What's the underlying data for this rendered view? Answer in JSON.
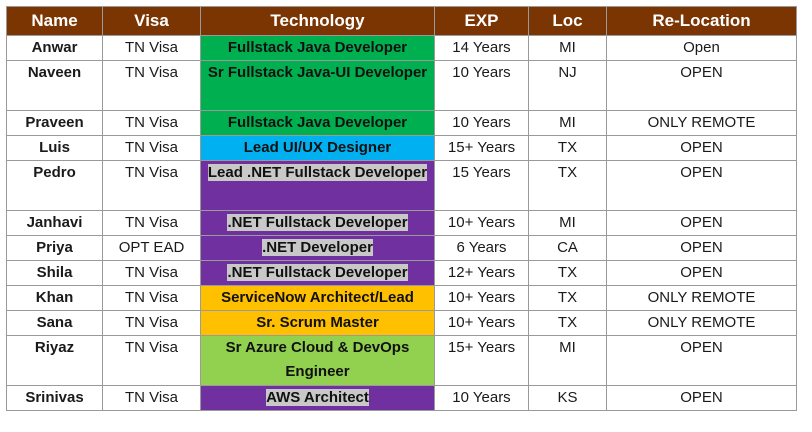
{
  "headers": [
    "Name",
    "Visa",
    "Technology",
    "EXP",
    "Loc",
    "Re-Location"
  ],
  "colors": {
    "header_bg": "#7a3503",
    "green": "#00b050",
    "blue": "#00b0f0",
    "purple": "#7030a0",
    "orange": "#ffc000",
    "lightgreen": "#92d050"
  },
  "rows": [
    {
      "name": "Anwar",
      "visa": "TN Visa",
      "tech": "Fullstack Java Developer",
      "tech_color": "green",
      "exp": "14 Years",
      "loc": "MI",
      "reloc": "Open"
    },
    {
      "name": "Naveen",
      "visa": "TN Visa",
      "tech": "Sr Fullstack Java-UI Developer",
      "tech_color": "green",
      "exp": "10 Years",
      "loc": "NJ",
      "reloc": "OPEN"
    },
    {
      "name": "Praveen",
      "visa": "TN Visa",
      "tech": "Fullstack Java Developer",
      "tech_color": "green",
      "exp": "10 Years",
      "loc": "MI",
      "reloc": "ONLY REMOTE"
    },
    {
      "name": "Luis",
      "visa": "TN Visa",
      "tech": "Lead UI/UX Designer",
      "tech_color": "blue",
      "exp": "15+ Years",
      "loc": "TX",
      "reloc": "OPEN"
    },
    {
      "name": "Pedro",
      "visa": "TN Visa",
      "tech": "Lead .NET Fullstack Developer",
      "tech_color": "purple",
      "exp": "15 Years",
      "loc": "TX",
      "reloc": "OPEN"
    },
    {
      "name": "Janhavi",
      "visa": "TN Visa",
      "tech": ".NET Fullstack Developer",
      "tech_color": "purple",
      "exp": "10+ Years",
      "loc": "MI",
      "reloc": "OPEN"
    },
    {
      "name": "Priya",
      "visa": "OPT EAD",
      "tech": ".NET Developer",
      "tech_color": "purple",
      "exp": "6 Years",
      "loc": "CA",
      "reloc": "OPEN"
    },
    {
      "name": "Shila",
      "visa": "TN Visa",
      "tech": ".NET Fullstack Developer",
      "tech_color": "purple",
      "exp": "12+ Years",
      "loc": "TX",
      "reloc": "OPEN"
    },
    {
      "name": "Khan",
      "visa": "TN Visa",
      "tech": "ServiceNow Architect/Lead",
      "tech_color": "orange",
      "exp": "10+ Years",
      "loc": "TX",
      "reloc": "ONLY REMOTE"
    },
    {
      "name": "Sana",
      "visa": "TN Visa",
      "tech": "Sr. Scrum Master",
      "tech_color": "orange",
      "exp": "10+ Years",
      "loc": "TX",
      "reloc": "ONLY REMOTE"
    },
    {
      "name": "Riyaz",
      "visa": "TN Visa",
      "tech": "Sr Azure Cloud & DevOps Engineer",
      "tech_color": "lightgreen",
      "exp": "15+ Years",
      "loc": "MI",
      "reloc": "OPEN"
    },
    {
      "name": "Srinivas",
      "visa": "TN Visa",
      "tech": "AWS Architect",
      "tech_color": "purple",
      "exp": "10 Years",
      "loc": "KS",
      "reloc": "OPEN"
    }
  ]
}
